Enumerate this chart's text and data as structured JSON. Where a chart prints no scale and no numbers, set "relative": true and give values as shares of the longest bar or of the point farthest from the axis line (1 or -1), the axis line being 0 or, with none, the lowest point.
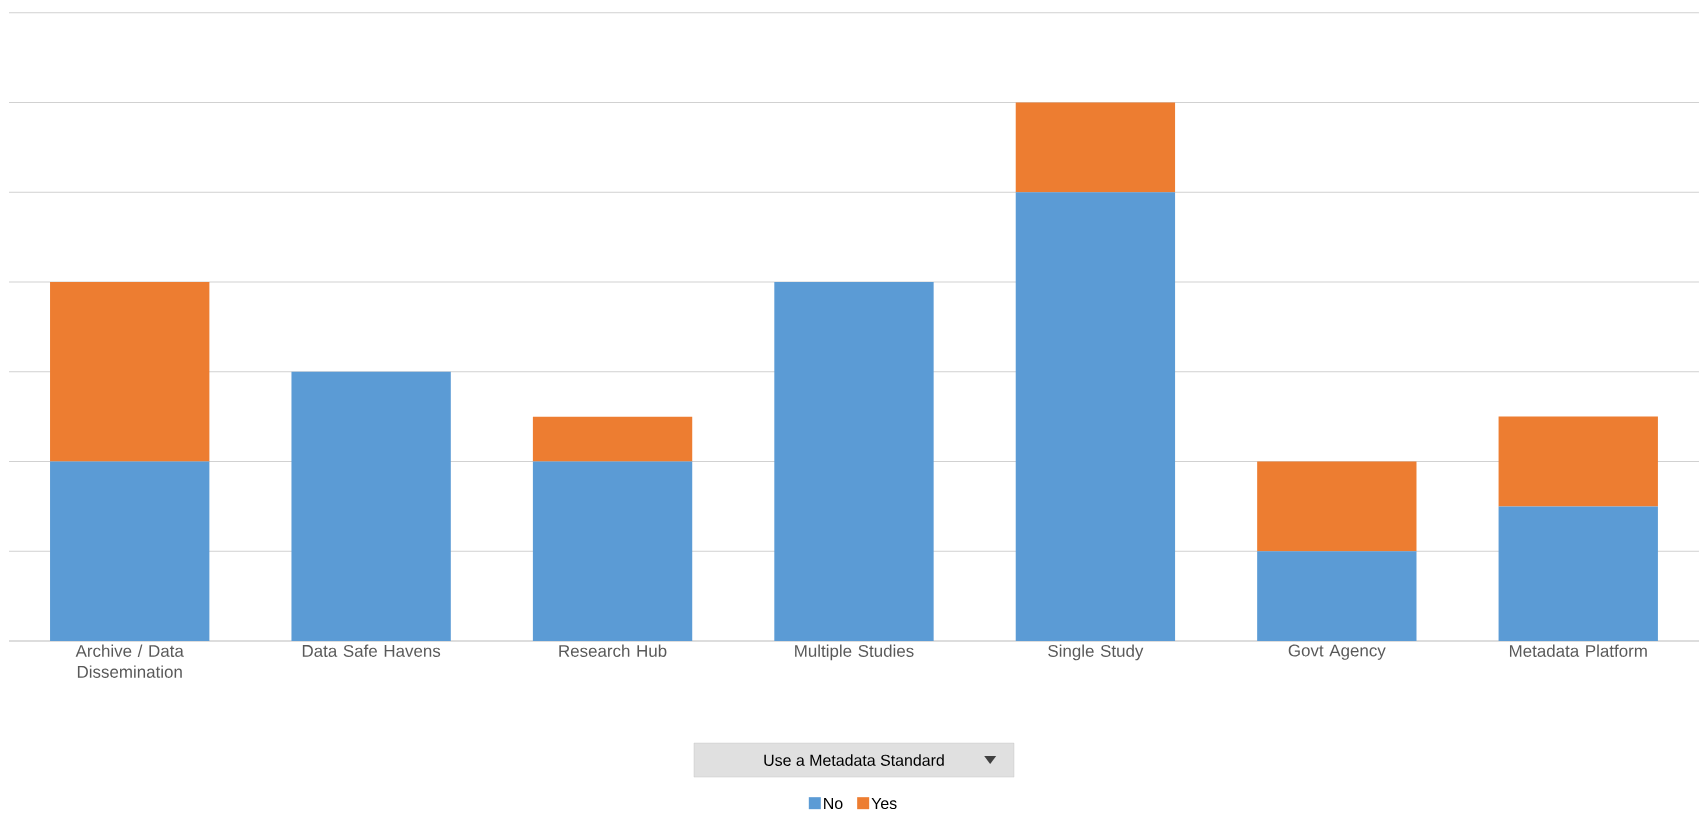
{
  "chart_data": {
    "type": "bar",
    "stacked": true,
    "relative": true,
    "grid": "y",
    "legend": "bottom",
    "legend_title": "Use a Metadata Standard",
    "categories": [
      "Archive / Data Dissemination",
      "Data Safe Havens",
      "Research Hub",
      "Multiple Studies",
      "Single Study",
      "Govt Agency",
      "Metadata Platform"
    ],
    "series": [
      {
        "name": "No",
        "color": "#5b9bd5",
        "values": [
          0.3333,
          0.5,
          0.3333,
          0.6667,
          0.8333,
          0.1667,
          0.25
        ]
      },
      {
        "name": "Yes",
        "color": "#ed7d31",
        "values": [
          0.3333,
          0,
          0.0833,
          0,
          0.1667,
          0.1667,
          0.1667
        ]
      }
    ]
  }
}
